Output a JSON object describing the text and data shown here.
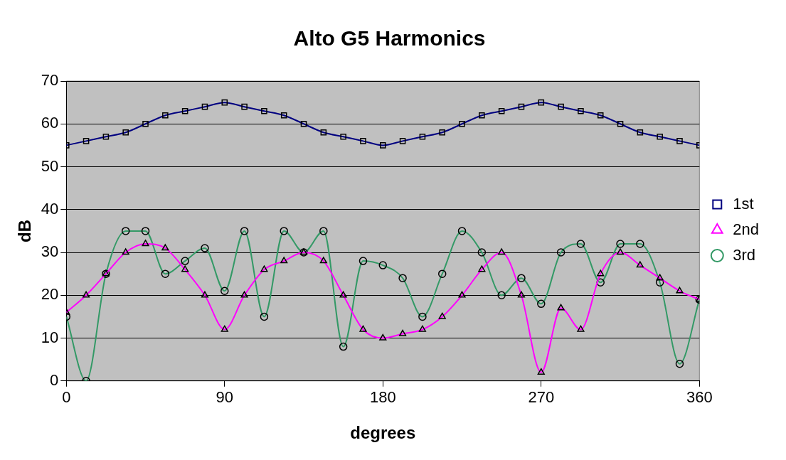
{
  "chart_data": {
    "type": "line",
    "title": "Alto G5 Harmonics",
    "xlabel": "degrees",
    "ylabel": "dB",
    "x": [
      0,
      11.25,
      22.5,
      33.75,
      45,
      56.25,
      67.5,
      78.75,
      90,
      101.25,
      112.5,
      123.75,
      135,
      146.25,
      157.5,
      168.75,
      180,
      191.25,
      202.5,
      213.75,
      225,
      236.25,
      247.5,
      258.75,
      270,
      281.25,
      292.5,
      303.75,
      315,
      326.25,
      337.5,
      348.75,
      360
    ],
    "series": [
      {
        "name": "1st",
        "color": "#000080",
        "marker": "square",
        "values": [
          55,
          56,
          57,
          58,
          60,
          62,
          63,
          64,
          65,
          64,
          63,
          62,
          60,
          58,
          57,
          56,
          55,
          56,
          57,
          58,
          60,
          62,
          63,
          64,
          65,
          64,
          63,
          62,
          60,
          58,
          57,
          56,
          55
        ]
      },
      {
        "name": "2nd",
        "color": "#ff00ff",
        "marker": "triangle",
        "values": [
          16,
          20,
          25,
          30,
          32,
          31,
          26,
          20,
          12,
          20,
          26,
          28,
          30,
          28,
          20,
          12,
          10,
          11,
          12,
          15,
          20,
          26,
          30,
          20,
          2,
          17,
          12,
          25,
          30,
          27,
          24,
          21,
          19
        ]
      },
      {
        "name": "3rd",
        "color": "#339966",
        "marker": "circle",
        "values": [
          15,
          0,
          25,
          35,
          35,
          25,
          28,
          31,
          21,
          35,
          15,
          35,
          30,
          35,
          8,
          28,
          27,
          24,
          15,
          25,
          35,
          30,
          20,
          24,
          18,
          30,
          32,
          23,
          32,
          32,
          23,
          4,
          19
        ]
      }
    ],
    "xlim": [
      0,
      360
    ],
    "xticks": [
      0,
      90,
      180,
      270,
      360
    ],
    "ylim": [
      0,
      70
    ],
    "yticks": [
      0,
      10,
      20,
      30,
      40,
      50,
      60,
      70
    ],
    "grid": "y",
    "legend": "right",
    "line_style": "solid"
  }
}
